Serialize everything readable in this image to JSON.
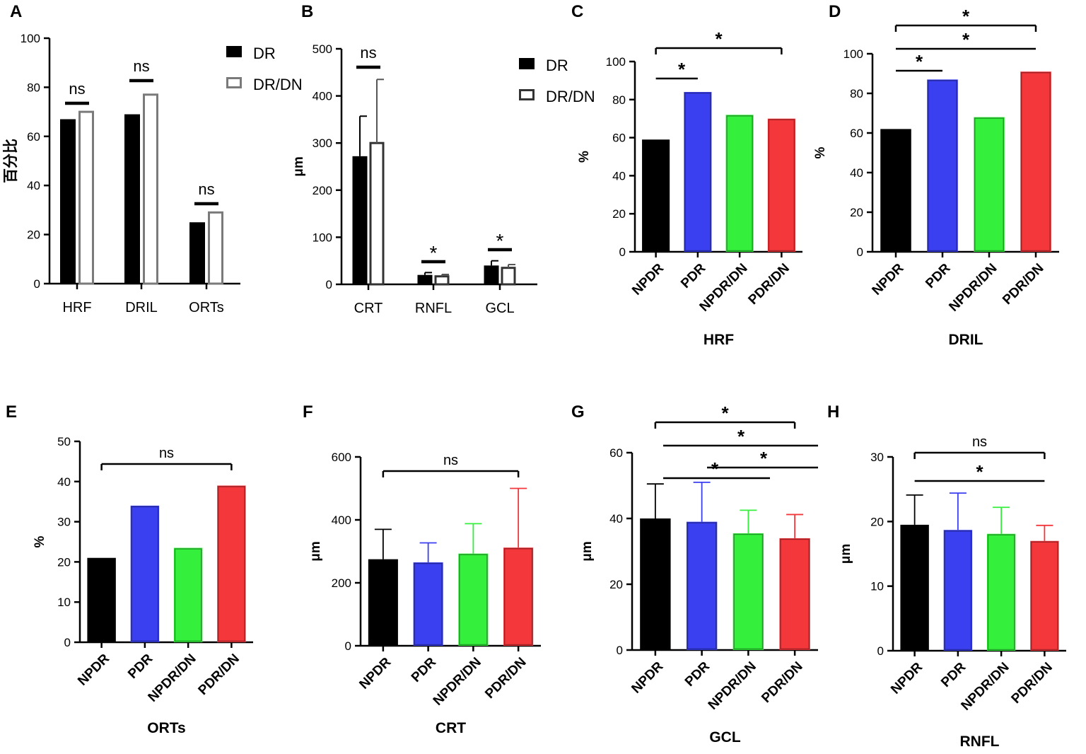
{
  "chart_data": [
    {
      "panel": "A",
      "type": "bar",
      "categories": [
        "HRF",
        "DRIL",
        "ORTs"
      ],
      "series": [
        {
          "name": "DR",
          "values": [
            67,
            69,
            25
          ]
        },
        {
          "name": "DR/DN",
          "values": [
            70,
            77,
            29
          ]
        }
      ],
      "ylabel": "百分比",
      "xlabel": "",
      "ylim": [
        0,
        100
      ],
      "yticks": [
        "0",
        "20",
        "40",
        "60",
        "80",
        "100"
      ],
      "annotations": [
        "ns",
        "ns",
        "ns"
      ],
      "legend": "top-right"
    },
    {
      "panel": "B",
      "type": "bar",
      "categories": [
        "CRT",
        "RNFL",
        "GCL"
      ],
      "series": [
        {
          "name": "DR",
          "values": [
            272,
            20,
            40
          ],
          "errors": [
            85,
            5,
            10
          ]
        },
        {
          "name": "DR/DN",
          "values": [
            300,
            17,
            35
          ],
          "errors": [
            135,
            4,
            7
          ]
        }
      ],
      "ylabel": "μm",
      "xlabel": "",
      "ylim": [
        0,
        500
      ],
      "yticks": [
        "0",
        "100",
        "200",
        "300",
        "400",
        "500"
      ],
      "annotations": [
        "ns",
        "*",
        "*"
      ],
      "legend": "top-right"
    },
    {
      "panel": "C",
      "type": "bar",
      "categories": [
        "NPDR",
        "PDR",
        "NPDR/DN",
        "PDR/DN"
      ],
      "values": [
        59,
        84,
        72,
        70
      ],
      "ylabel": "%",
      "xlabel": "HRF",
      "ylim": [
        0,
        100
      ],
      "yticks": [
        "0",
        "20",
        "40",
        "60",
        "80",
        "100"
      ],
      "annotations": [
        "*",
        "*"
      ]
    },
    {
      "panel": "D",
      "type": "bar",
      "categories": [
        "NPDR",
        "PDR",
        "NPDR/DN",
        "PDR/DN"
      ],
      "values": [
        62,
        87,
        68,
        91
      ],
      "ylabel": "%",
      "xlabel": "DRIL",
      "ylim": [
        0,
        100
      ],
      "yticks": [
        "0",
        "20",
        "40",
        "60",
        "80",
        "100"
      ],
      "annotations": [
        "*",
        "*",
        "*"
      ]
    },
    {
      "panel": "E",
      "type": "bar",
      "categories": [
        "NPDR",
        "PDR",
        "NPDR/DN",
        "PDR/DN"
      ],
      "values": [
        21,
        34,
        23.5,
        39
      ],
      "ylabel": "%",
      "xlabel": "ORTs",
      "ylim": [
        0,
        50
      ],
      "yticks": [
        "0",
        "10",
        "20",
        "30",
        "40",
        "50"
      ],
      "annotations": [
        "ns"
      ]
    },
    {
      "panel": "F",
      "type": "bar",
      "categories": [
        "NPDR",
        "PDR",
        "NPDR/DN",
        "PDR/DN"
      ],
      "values": [
        275,
        265,
        293,
        312
      ],
      "errors": [
        95,
        62,
        95,
        188
      ],
      "ylabel": "μm",
      "xlabel": "CRT",
      "ylim": [
        0,
        600
      ],
      "yticks": [
        "0",
        "200",
        "400",
        "600"
      ],
      "annotations": [
        "ns"
      ]
    },
    {
      "panel": "G",
      "type": "bar",
      "categories": [
        "NPDR",
        "PDR",
        "NPDR/DN",
        "PDR/DN"
      ],
      "values": [
        40,
        39,
        35.5,
        34
      ],
      "errors": [
        10.5,
        12,
        7,
        7.2
      ],
      "ylabel": "μm",
      "xlabel": "GCL",
      "ylim": [
        0,
        60
      ],
      "yticks": [
        "0",
        "20",
        "40",
        "60"
      ],
      "annotations": [
        "*",
        "*",
        "*",
        "*"
      ]
    },
    {
      "panel": "H",
      "type": "bar",
      "categories": [
        "NPDR",
        "PDR",
        "NPDR/DN",
        "PDR/DN"
      ],
      "values": [
        19.5,
        18.7,
        18.1,
        17
      ],
      "errors": [
        4.6,
        5.7,
        4.1,
        2.4
      ],
      "ylabel": "μm",
      "xlabel": "RNFL",
      "ylim": [
        0,
        30
      ],
      "yticks": [
        "0",
        "10",
        "20",
        "30"
      ],
      "annotations": [
        "ns",
        "*"
      ]
    }
  ],
  "colors": {
    "NPDR": "#000000",
    "PDR": "#3a3ff0",
    "NPDR/DN": "#34ef3c",
    "PDR/DN": "#f4373b",
    "DR": "#000000",
    "DR/DN": "#6f6f6f"
  }
}
